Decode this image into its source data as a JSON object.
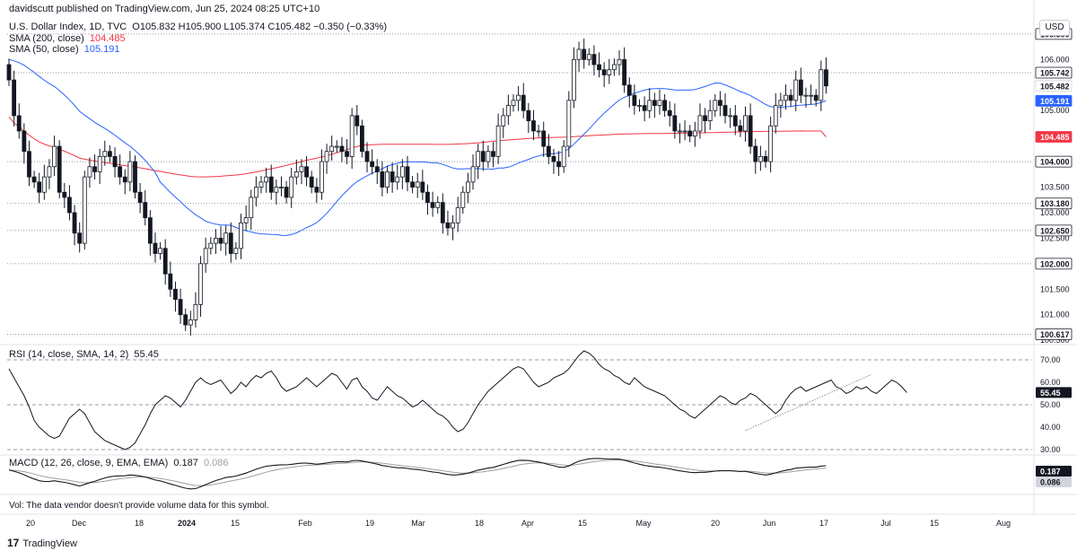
{
  "header": {
    "published": "davidscutt published on TradingView.com, Jun 25, 2024 08:25 UTC+10",
    "symbol_line": "U.S. Dollar Index, 1D, TVC",
    "ohlc": "O105.832 H105.900 L105.374 C105.482 −0.350 (−0.33%)",
    "sma200_label": "SMA (200, close)",
    "sma200_value": "104.485",
    "sma50_label": "SMA (50, close)",
    "sma50_value": "105.191",
    "rsi_label": "RSI (14, close, SMA, 14, 2)",
    "rsi_value": "55.45",
    "macd_label": "MACD (12, 26, close, 9, EMA, EMA)",
    "macd_value": "0.187",
    "signal_value": "0.086",
    "currency_button": "USD"
  },
  "volume_note": "Vol: The data vendor doesn't provide volume data for this symbol.",
  "branding": {
    "logo": "17",
    "name": "TradingView"
  },
  "colors": {
    "sma200": "#f23645",
    "sma50": "#2962ff",
    "candle_up": "#ffffff",
    "candle_down": "#131722",
    "rsi": "#131722",
    "signal": "#9e9e9e",
    "grid_dotted": "#787b86"
  },
  "chart_data": [
    {
      "type": "candlestick",
      "title": "U.S. Dollar Index, 1D, TVC",
      "ylim": [
        100.45,
        106.85
      ],
      "yticks": [
        "106.000",
        "105.000",
        "103.500",
        "103.000",
        "102.500",
        "101.500",
        "101.000",
        "100.500"
      ],
      "price_labels": [
        {
          "text": "106.500",
          "value": 106.5,
          "style": "level"
        },
        {
          "text": "105.742",
          "value": 105.742,
          "style": "level"
        },
        {
          "text": "105.482",
          "value": 105.482,
          "style": "price"
        },
        {
          "text": "105.191",
          "value": 105.191,
          "style": "sma50"
        },
        {
          "text": "104.485",
          "value": 104.485,
          "style": "sma200"
        },
        {
          "text": "104.000",
          "value": 104.0,
          "style": "level"
        },
        {
          "text": "103.180",
          "value": 103.18,
          "style": "level"
        },
        {
          "text": "102.650",
          "value": 102.65,
          "style": "level"
        },
        {
          "text": "102.000",
          "value": 102.0,
          "style": "level"
        },
        {
          "text": "100.617",
          "value": 100.617,
          "style": "level"
        }
      ],
      "horizontal_levels": [
        106.5,
        105.742,
        104.0,
        103.18,
        102.65,
        102.0,
        100.617
      ],
      "x_labels": [
        "20",
        "Dec",
        "18",
        "2024",
        "15",
        "Feb",
        "19",
        "Mar",
        "18",
        "Apr",
        "15",
        "May",
        "20",
        "Jun",
        "17",
        "Jul",
        "15",
        "Aug"
      ],
      "closes": [
        105.6,
        104.9,
        104.6,
        104.2,
        103.7,
        103.6,
        103.4,
        103.7,
        103.9,
        104.3,
        103.4,
        103.3,
        103.0,
        102.6,
        102.4,
        103.7,
        103.9,
        103.8,
        104.1,
        104.2,
        104.1,
        103.9,
        103.7,
        103.6,
        104.0,
        103.4,
        103.2,
        102.9,
        102.4,
        102.2,
        102.3,
        101.8,
        101.5,
        101.3,
        101.0,
        100.8,
        100.9,
        101.2,
        102.0,
        102.3,
        102.4,
        102.5,
        102.4,
        102.6,
        102.2,
        102.3,
        102.8,
        102.9,
        103.3,
        103.5,
        103.6,
        103.7,
        103.4,
        103.5,
        103.5,
        103.3,
        103.7,
        103.8,
        103.9,
        103.7,
        103.5,
        103.4,
        104.0,
        104.2,
        104.3,
        104.3,
        104.2,
        104.1,
        104.9,
        104.7,
        104.2,
        104.0,
        103.9,
        103.8,
        103.5,
        103.8,
        103.6,
        103.7,
        103.9,
        103.6,
        103.5,
        103.6,
        103.4,
        103.2,
        103.1,
        103.2,
        102.8,
        102.7,
        102.8,
        103.1,
        103.4,
        103.6,
        103.9,
        104.2,
        104.0,
        104.2,
        104.1,
        104.7,
        104.9,
        105.1,
        105.2,
        105.3,
        105.0,
        104.8,
        104.6,
        104.6,
        104.3,
        104.1,
        104.0,
        103.9,
        104.3,
        105.2,
        106.0,
        106.2,
        106.0,
        106.1,
        105.9,
        105.8,
        105.7,
        105.8,
        105.9,
        106.0,
        105.5,
        105.3,
        105.1,
        105.1,
        105.0,
        105.2,
        105.1,
        105.2,
        105.0,
        104.9,
        104.6,
        104.6,
        104.6,
        104.5,
        104.6,
        104.9,
        104.8,
        105.0,
        105.2,
        105.1,
        104.9,
        104.9,
        104.7,
        104.6,
        104.9,
        104.3,
        104.0,
        104.1,
        104.0,
        104.7,
        105.1,
        105.2,
        105.3,
        105.2,
        105.6,
        105.3,
        105.3,
        105.3,
        105.2,
        105.8,
        105.482
      ],
      "series": [
        {
          "name": "SMA (200, close)",
          "start": 104.45,
          "end": 104.485
        },
        {
          "name": "SMA (50, close)",
          "end": 105.191
        }
      ]
    },
    {
      "type": "line",
      "title": "RSI (14, close, SMA, 14, 2)",
      "ylim": [
        28,
        76
      ],
      "yticks": [
        "70.00",
        "60.00",
        "50.00",
        "40.00",
        "30.00"
      ],
      "bands": [
        70,
        50,
        30
      ],
      "current": 55.45,
      "current_label": "55.45",
      "values": [
        66,
        62,
        58,
        54,
        49,
        43,
        40,
        38,
        36,
        35,
        36,
        40,
        44,
        46,
        48,
        46,
        42,
        38,
        36,
        34,
        33,
        32,
        31,
        30,
        31,
        33,
        37,
        41,
        46,
        50,
        52,
        54,
        53,
        51,
        49,
        52,
        56,
        60,
        62,
        60,
        59,
        60,
        61,
        58,
        55,
        57,
        60,
        58,
        61,
        63,
        62,
        64,
        65,
        62,
        58,
        56,
        57,
        58,
        60,
        62,
        60,
        58,
        60,
        62,
        64,
        63,
        60,
        57,
        61,
        62,
        58,
        56,
        53,
        52,
        55,
        58,
        56,
        54,
        53,
        51,
        49,
        50,
        52,
        50,
        48,
        46,
        45,
        43,
        40,
        38,
        39,
        42,
        46,
        50,
        53,
        56,
        58,
        60,
        62,
        64,
        66,
        67,
        66,
        63,
        60,
        58,
        59,
        60,
        62,
        63,
        64,
        66,
        69,
        72,
        74,
        73,
        71,
        68,
        66,
        65,
        63,
        62,
        60,
        59,
        62,
        60,
        58,
        57,
        56,
        55,
        54,
        52,
        50,
        48,
        47,
        45,
        44,
        46,
        48,
        50,
        52,
        54,
        53,
        51,
        50,
        52,
        53,
        55,
        54,
        52,
        50,
        48,
        46,
        48,
        52,
        55,
        57,
        58,
        56,
        57,
        58,
        59,
        60,
        61,
        58,
        57,
        55,
        56,
        58,
        57,
        58,
        56,
        55,
        57,
        59,
        61,
        60,
        58,
        55.45
      ],
      "trendline": {
        "from": [
          146,
          38.5
        ],
        "to": [
          168,
          56.0
        ],
        "extend_to": [
          171,
          63.5
        ]
      }
    },
    {
      "type": "line",
      "title": "MACD (12, 26, close, 9, EMA, EMA)",
      "ylim": [
        -0.95,
        0.62
      ],
      "yticks": [],
      "current_labels": [
        "0.187",
        "0.086"
      ],
      "series": [
        {
          "name": "MACD",
          "end": 0.187
        },
        {
          "name": "Signal",
          "end": 0.086
        }
      ]
    }
  ]
}
